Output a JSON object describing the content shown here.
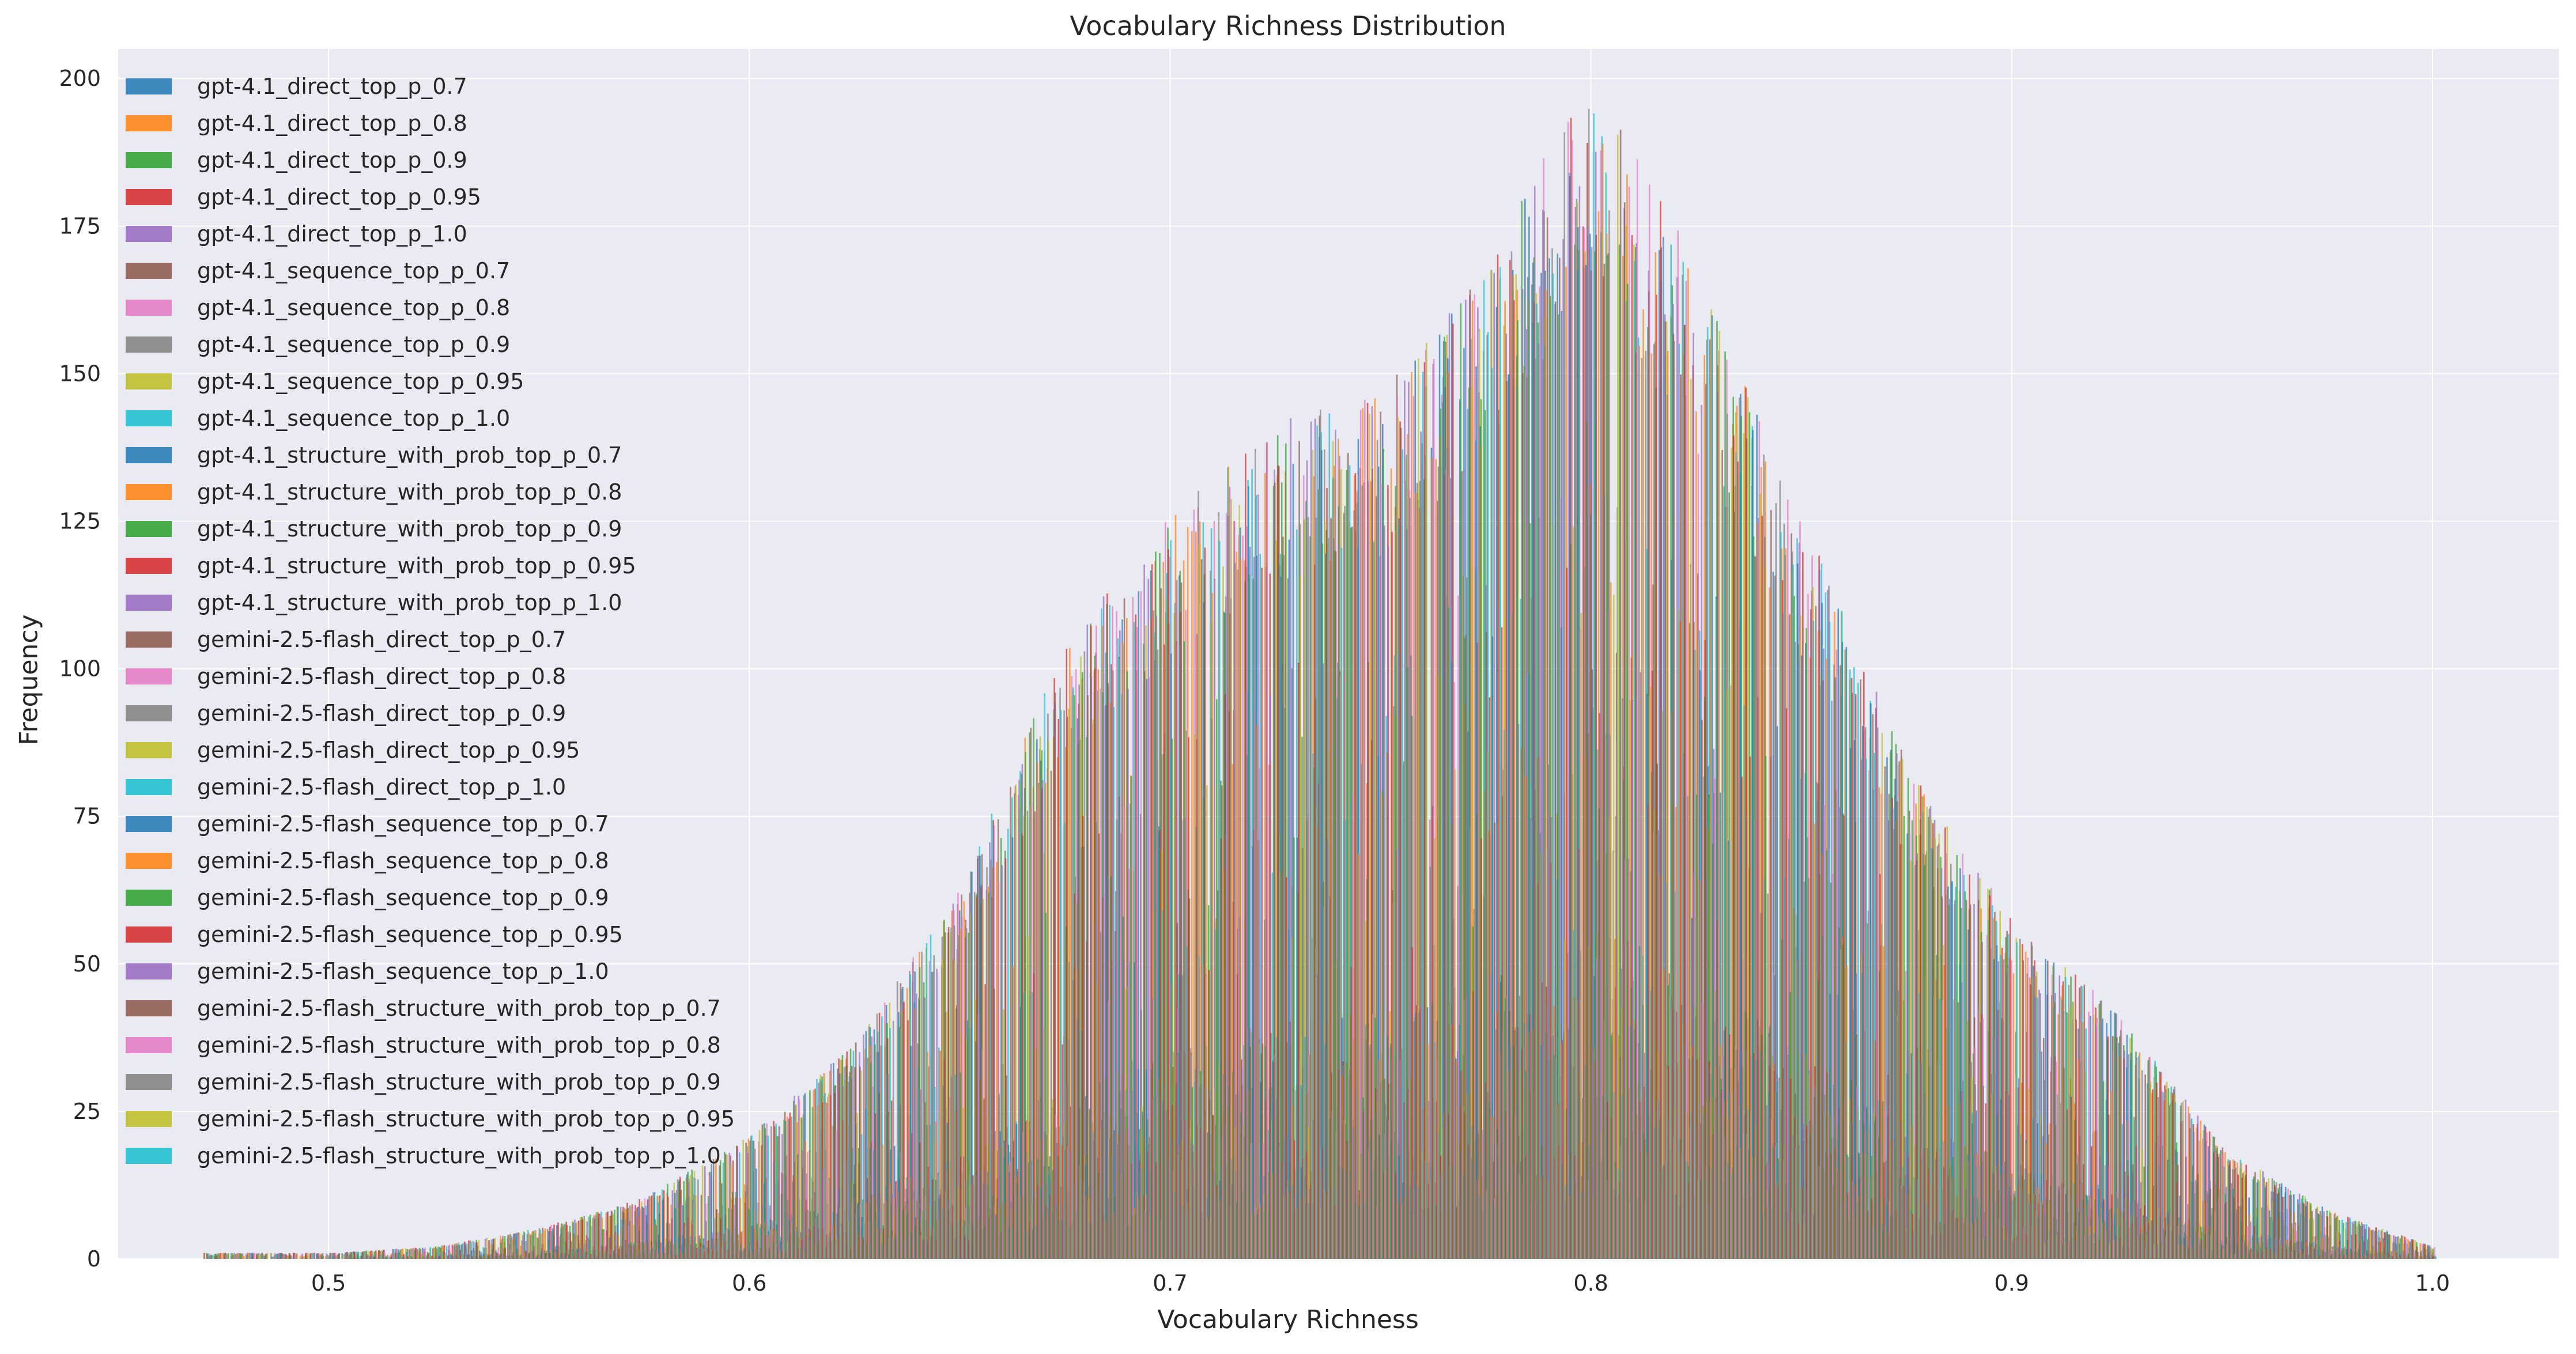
{
  "chart_data": {
    "type": "histogram",
    "title": "Vocabulary Richness Distribution",
    "xlabel": "Vocabulary Richness",
    "ylabel": "Frequency",
    "xlim": [
      0.45,
      1.03
    ],
    "ylim": [
      0,
      205
    ],
    "x_ticks": [
      0.5,
      0.6,
      0.7,
      0.8,
      0.9,
      1.0
    ],
    "x_tick_labels": [
      "0.5",
      "0.6",
      "0.7",
      "0.8",
      "0.9",
      "1.0"
    ],
    "y_ticks": [
      0,
      25,
      50,
      75,
      100,
      125,
      150,
      175,
      200
    ],
    "y_tick_labels": [
      "0",
      "25",
      "50",
      "75",
      "100",
      "125",
      "150",
      "175",
      "200"
    ],
    "grid": true,
    "legend_position": "upper-left",
    "bar_alpha": 0.7,
    "bin_centers": [
      0.475,
      0.5,
      0.525,
      0.55,
      0.575,
      0.6,
      0.625,
      0.65,
      0.675,
      0.7,
      0.725,
      0.75,
      0.775,
      0.8,
      0.825,
      0.85,
      0.875,
      0.9,
      0.925,
      0.95,
      0.975,
      1.0
    ],
    "envelope_frequency": [
      1,
      1,
      2,
      5,
      10,
      20,
      35,
      60,
      100,
      120,
      135,
      140,
      160,
      193,
      160,
      120,
      80,
      55,
      40,
      18,
      8,
      2
    ],
    "series": [
      {
        "name": "gpt-4.1_direct_top_p_0.7",
        "color": "#1f77b4"
      },
      {
        "name": "gpt-4.1_direct_top_p_0.8",
        "color": "#ff7f0e"
      },
      {
        "name": "gpt-4.1_direct_top_p_0.9",
        "color": "#2ca02c"
      },
      {
        "name": "gpt-4.1_direct_top_p_0.95",
        "color": "#d62728"
      },
      {
        "name": "gpt-4.1_direct_top_p_1.0",
        "color": "#9467bd"
      },
      {
        "name": "gpt-4.1_sequence_top_p_0.7",
        "color": "#8c564b"
      },
      {
        "name": "gpt-4.1_sequence_top_p_0.8",
        "color": "#e377c2"
      },
      {
        "name": "gpt-4.1_sequence_top_p_0.9",
        "color": "#7f7f7f"
      },
      {
        "name": "gpt-4.1_sequence_top_p_0.95",
        "color": "#bcbd22"
      },
      {
        "name": "gpt-4.1_sequence_top_p_1.0",
        "color": "#17becf"
      },
      {
        "name": "gpt-4.1_structure_with_prob_top_p_0.7",
        "color": "#1f77b4"
      },
      {
        "name": "gpt-4.1_structure_with_prob_top_p_0.8",
        "color": "#ff7f0e"
      },
      {
        "name": "gpt-4.1_structure_with_prob_top_p_0.9",
        "color": "#2ca02c"
      },
      {
        "name": "gpt-4.1_structure_with_prob_top_p_0.95",
        "color": "#d62728"
      },
      {
        "name": "gpt-4.1_structure_with_prob_top_p_1.0",
        "color": "#9467bd"
      },
      {
        "name": "gemini-2.5-flash_direct_top_p_0.7",
        "color": "#8c564b"
      },
      {
        "name": "gemini-2.5-flash_direct_top_p_0.8",
        "color": "#e377c2"
      },
      {
        "name": "gemini-2.5-flash_direct_top_p_0.9",
        "color": "#7f7f7f"
      },
      {
        "name": "gemini-2.5-flash_direct_top_p_0.95",
        "color": "#bcbd22"
      },
      {
        "name": "gemini-2.5-flash_direct_top_p_1.0",
        "color": "#17becf"
      },
      {
        "name": "gemini-2.5-flash_sequence_top_p_0.7",
        "color": "#1f77b4"
      },
      {
        "name": "gemini-2.5-flash_sequence_top_p_0.8",
        "color": "#ff7f0e"
      },
      {
        "name": "gemini-2.5-flash_sequence_top_p_0.9",
        "color": "#2ca02c"
      },
      {
        "name": "gemini-2.5-flash_sequence_top_p_0.95",
        "color": "#d62728"
      },
      {
        "name": "gemini-2.5-flash_sequence_top_p_1.0",
        "color": "#9467bd"
      },
      {
        "name": "gemini-2.5-flash_structure_with_prob_top_p_0.7",
        "color": "#8c564b"
      },
      {
        "name": "gemini-2.5-flash_structure_with_prob_top_p_0.8",
        "color": "#e377c2"
      },
      {
        "name": "gemini-2.5-flash_structure_with_prob_top_p_0.9",
        "color": "#7f7f7f"
      },
      {
        "name": "gemini-2.5-flash_structure_with_prob_top_p_0.95",
        "color": "#bcbd22"
      },
      {
        "name": "gemini-2.5-flash_structure_with_prob_top_p_1.0",
        "color": "#17becf"
      }
    ]
  }
}
